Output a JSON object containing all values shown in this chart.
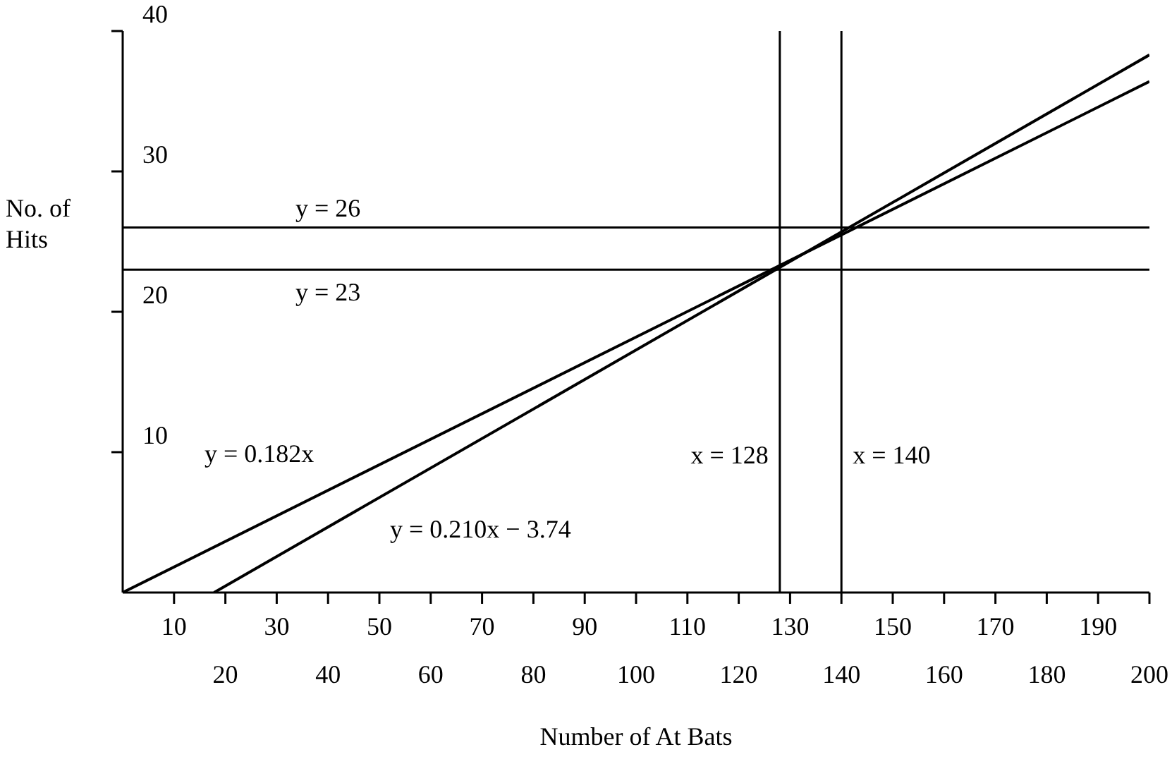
{
  "chart_data": {
    "type": "line",
    "xlabel": "Number of At Bats",
    "ylabel": "No. of Hits",
    "xlim": [
      0,
      200
    ],
    "ylim": [
      0,
      40
    ],
    "xticks": [
      10,
      {
        "value": 20,
        "label": null
      },
      30,
      {
        "value": 40,
        "label": null
      },
      50,
      {
        "value": 60,
        "label": null
      },
      70,
      {
        "value": 80,
        "label": null
      },
      90,
      {
        "value": 100,
        "label": null
      },
      110,
      {
        "value": 120,
        "label": null
      },
      130,
      {
        "value": 140,
        "label": null
      },
      150,
      {
        "value": 160,
        "label": null
      },
      170,
      {
        "value": 180,
        "label": null
      },
      190,
      {
        "value": 200,
        "label": null
      }
    ],
    "x2lim": [
      0,
      200
    ],
    "x2ticks": [
      20,
      40,
      60,
      80,
      100,
      120,
      140,
      160,
      180,
      200
    ],
    "yticks": [
      10,
      20,
      30,
      40
    ],
    "series": [
      {
        "name": "y = 0.182x",
        "color": "#000000",
        "x": [
          0,
          200
        ],
        "values": [
          0,
          36.4
        ]
      },
      {
        "name": "y = 0.210x − 3.74",
        "color": "#000000",
        "x": [
          17.8,
          200
        ],
        "values": [
          0,
          38.3
        ]
      }
    ],
    "ref_lines": [
      {
        "axis": "y",
        "value": 26,
        "label": "y = 26"
      },
      {
        "axis": "y",
        "value": 23,
        "label": "y = 23"
      },
      {
        "axis": "x",
        "value": 128,
        "label": "x = 128"
      },
      {
        "axis": "x",
        "value": 140,
        "label": "x = 140"
      }
    ]
  }
}
